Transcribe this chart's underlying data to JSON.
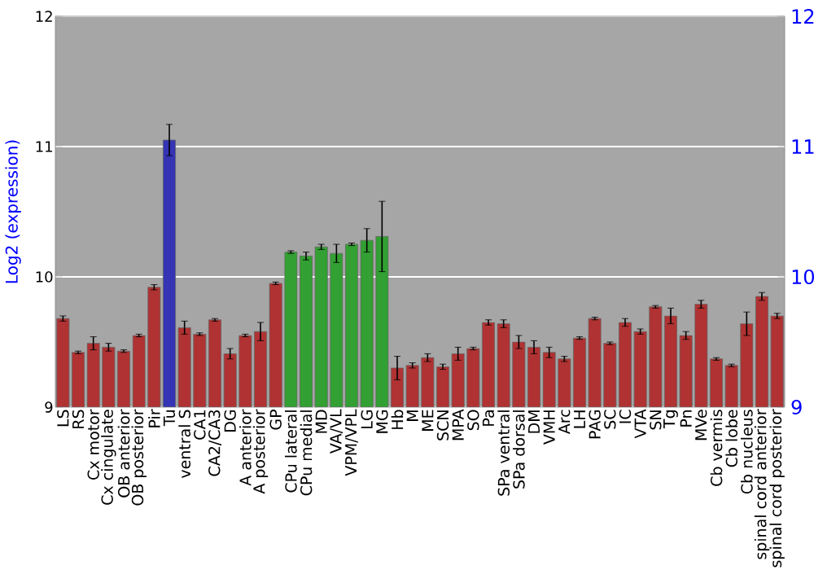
{
  "chart_data": {
    "type": "bar",
    "ylabel": "Log2 (expression)",
    "categories": [
      "LS",
      "RS",
      "Cx motor",
      "Cx cingulate",
      "OB anterior",
      "OB posterior",
      "Pir",
      "Tu",
      "ventral S",
      "CA1",
      "CA2/CA3",
      "DG",
      "A anterior",
      "A posterior",
      "GP",
      "CPu lateral",
      "CPu medial",
      "MD",
      "VA/VL",
      "VPM/VPL",
      "LG",
      "MG",
      "Hb",
      "M",
      "ME",
      "SCN",
      "MPA",
      "SO",
      "Pa",
      "SPa ventral",
      "SPa dorsal",
      "DM",
      "VMH",
      "Arc",
      "LH",
      "PAG",
      "SC",
      "IC",
      "VTA",
      "SN",
      "Tg",
      "Pn",
      "MVe",
      "Cb vermis",
      "Cb lobe",
      "Cb nucleus",
      "spinal cord anterior",
      "spinal cord posterior"
    ],
    "values": [
      9.68,
      9.42,
      9.49,
      9.46,
      9.43,
      9.55,
      9.92,
      11.05,
      9.61,
      9.56,
      9.67,
      9.41,
      9.55,
      9.58,
      9.95,
      10.19,
      10.16,
      10.23,
      10.18,
      10.25,
      10.28,
      10.31,
      9.3,
      9.32,
      9.38,
      9.31,
      9.41,
      9.45,
      9.65,
      9.64,
      9.5,
      9.46,
      9.42,
      9.37,
      9.53,
      9.68,
      9.49,
      9.65,
      9.58,
      9.77,
      9.7,
      9.55,
      9.79,
      9.37,
      9.32,
      9.64,
      9.85,
      9.7
    ],
    "errors": [
      0.02,
      0.01,
      0.05,
      0.03,
      0.01,
      0.01,
      0.02,
      0.12,
      0.05,
      0.01,
      0.01,
      0.04,
      0.01,
      0.07,
      0.01,
      0.01,
      0.03,
      0.02,
      0.07,
      0.01,
      0.09,
      0.27,
      0.09,
      0.02,
      0.03,
      0.02,
      0.05,
      0.01,
      0.02,
      0.03,
      0.05,
      0.05,
      0.04,
      0.02,
      0.01,
      0.01,
      0.01,
      0.03,
      0.02,
      0.01,
      0.06,
      0.03,
      0.03,
      0.01,
      0.01,
      0.09,
      0.03,
      0.02
    ],
    "colors": [
      "#b03232",
      "#b03232",
      "#b03232",
      "#b03232",
      "#b03232",
      "#b03232",
      "#b03232",
      "#3434b4",
      "#b03232",
      "#b03232",
      "#b03232",
      "#b03232",
      "#b03232",
      "#b03232",
      "#b03232",
      "#32a032",
      "#32a032",
      "#32a032",
      "#32a032",
      "#32a032",
      "#32a032",
      "#32a032",
      "#b03232",
      "#b03232",
      "#b03232",
      "#b03232",
      "#b03232",
      "#b03232",
      "#b03232",
      "#b03232",
      "#b03232",
      "#b03232",
      "#b03232",
      "#b03232",
      "#b03232",
      "#b03232",
      "#b03232",
      "#b03232",
      "#b03232",
      "#b03232",
      "#b03232",
      "#b03232",
      "#b03232",
      "#b03232",
      "#b03232",
      "#b03232",
      "#b03232",
      "#b03232"
    ],
    "ylim": [
      9,
      12
    ],
    "yticks": [
      9,
      10,
      11,
      12
    ],
    "y2lim": [
      9,
      12
    ],
    "y2ticks": [
      9,
      10,
      11,
      12
    ],
    "grid": "y"
  }
}
